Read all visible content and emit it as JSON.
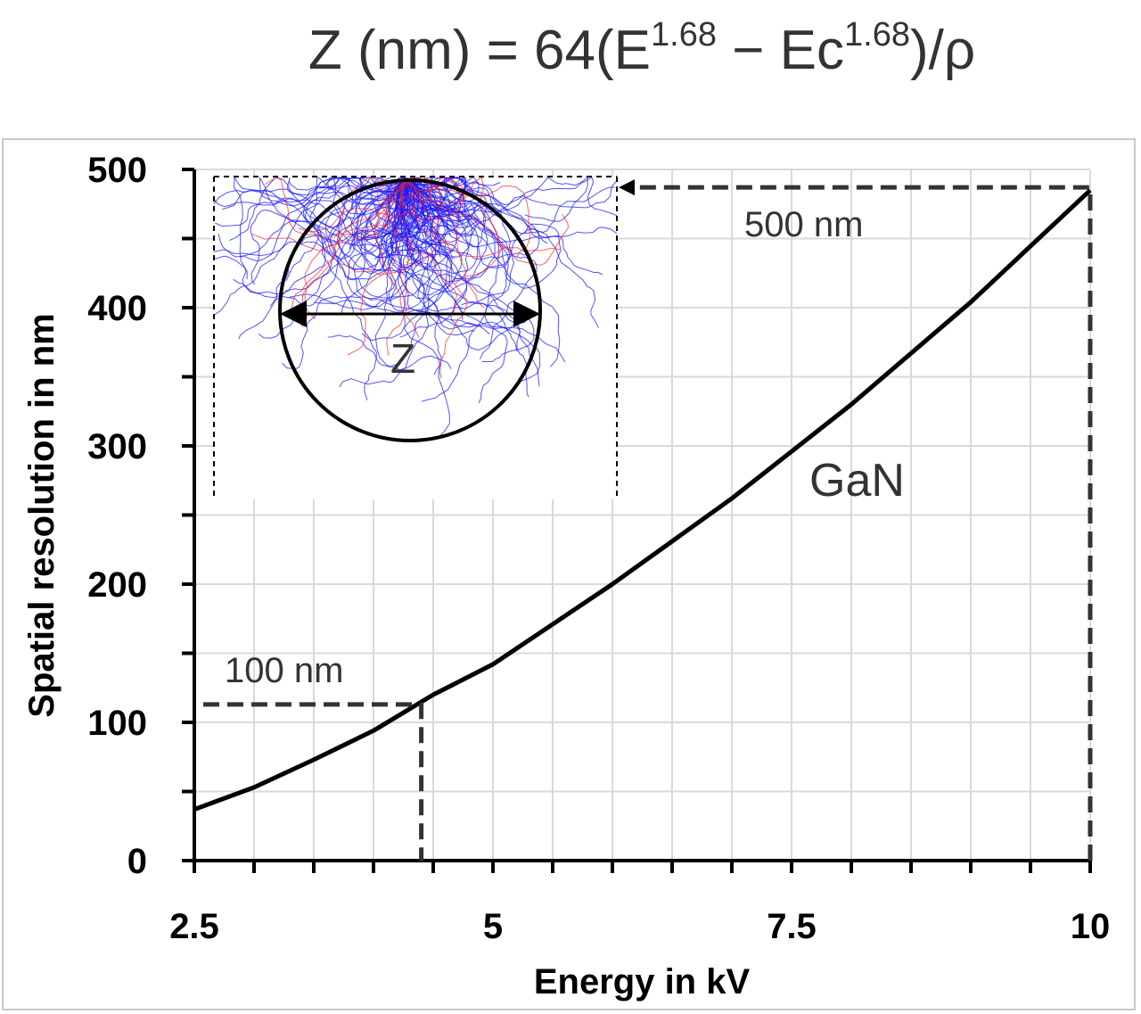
{
  "formula": {
    "prefix": "Z (nm) = 64(E",
    "exp1": "1.68",
    "middle": " − Ec",
    "exp2": "1.68",
    "suffix": ")/ρ"
  },
  "chart_data": {
    "type": "line",
    "xlabel": "Energy in kV",
    "ylabel": "Spatial resolution in nm",
    "xlim": [
      2.5,
      10
    ],
    "ylim": [
      0,
      500
    ],
    "x_ticks": [
      2.5,
      5,
      7.5,
      10
    ],
    "x_tick_labels": [
      "2.5",
      "5",
      "7.5",
      "10"
    ],
    "y_ticks": [
      0,
      100,
      200,
      300,
      400,
      500
    ],
    "y_tick_labels": [
      "0",
      "100",
      "200",
      "300",
      "400",
      "500"
    ],
    "x_minor_step": 0.5,
    "y_minor_step": 50,
    "grid": true,
    "series": [
      {
        "name": "GaN",
        "x": [
          2.5,
          3,
          3.5,
          4,
          4.5,
          5,
          6,
          7,
          8,
          9,
          10
        ],
        "y": [
          37,
          53,
          73,
          94,
          120,
          142,
          200,
          262,
          330,
          404,
          485
        ]
      }
    ],
    "annotations": [
      {
        "text": "100 nm",
        "x": 4.4,
        "y": 113
      },
      {
        "text": "500 nm",
        "x": 10,
        "y": 487
      },
      {
        "text": "GaN"
      },
      {
        "text": "Z"
      }
    ],
    "colors": {
      "line": "#000000",
      "guide": "#333333",
      "grid": "#d9d9d9",
      "trajectory_blue": "#1a1aff",
      "trajectory_red": "#ff2020"
    }
  }
}
